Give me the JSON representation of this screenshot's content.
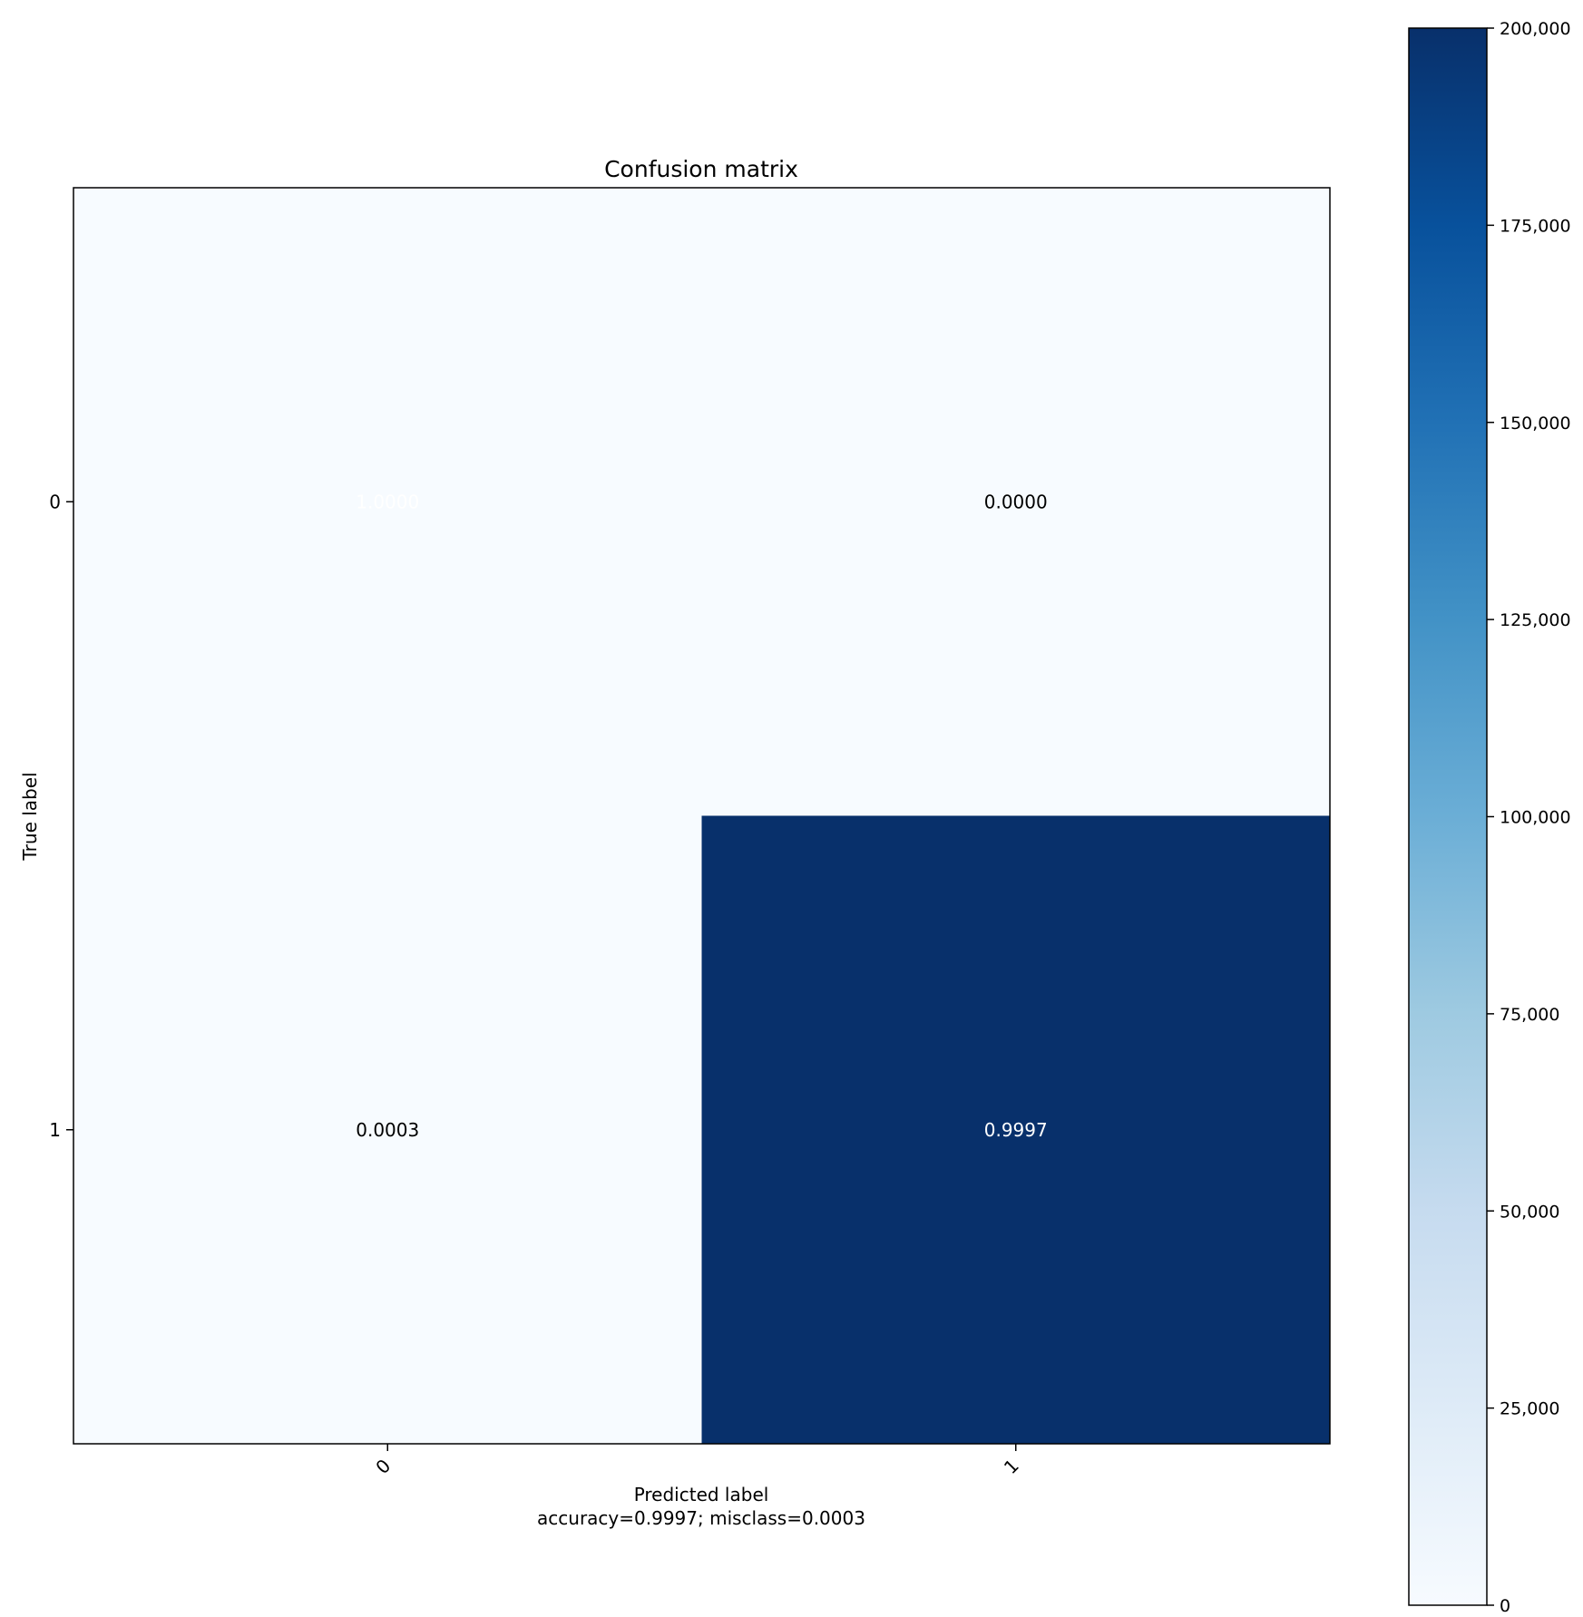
{
  "chart_data": {
    "type": "heatmap",
    "title": "Confusion matrix",
    "xlabel": "Predicted label",
    "xlabel_sub": "accuracy=0.9997; misclass=0.0003",
    "ylabel": "True label",
    "x_categories": [
      "0",
      "1"
    ],
    "y_categories": [
      "0",
      "1"
    ],
    "values": [
      [
        1.0,
        0.0
      ],
      [
        0.0003,
        0.9997
      ]
    ],
    "cell_labels": [
      [
        "1.0000",
        "0.0000"
      ],
      [
        "0.0003",
        "0.9997"
      ]
    ],
    "colorbar": {
      "range": [
        0,
        200000
      ],
      "ticks": [
        0,
        25000,
        50000,
        75000,
        100000,
        125000,
        150000,
        175000,
        200000
      ],
      "tick_labels": [
        "0",
        "25,000",
        "50,000",
        "75,000",
        "100,000",
        "125,000",
        "150,000",
        "175,000",
        "200,000"
      ],
      "colormap": "Blues"
    },
    "colors": {
      "low": "#f7fbff",
      "high": "#08306b",
      "text_on_dark": "#ffffff",
      "text_on_light": "#000000"
    }
  }
}
